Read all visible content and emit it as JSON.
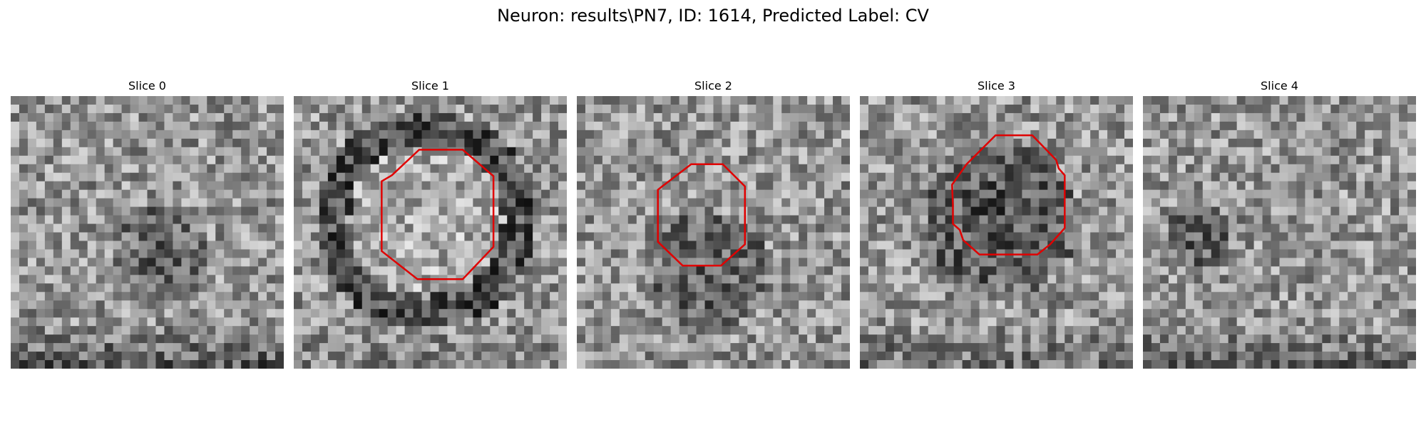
{
  "figure": {
    "title": "Neuron: results\\PN7, ID: 1614, Predicted Label: CV"
  },
  "panels": [
    {
      "title": "Slice 0",
      "has_contour": false
    },
    {
      "title": "Slice 1",
      "has_contour": true
    },
    {
      "title": "Slice 2",
      "has_contour": true
    },
    {
      "title": "Slice 3",
      "has_contour": true
    },
    {
      "title": "Slice 4",
      "has_contour": false
    }
  ],
  "colors": {
    "contour": "#e00000",
    "background": "#ffffff"
  }
}
